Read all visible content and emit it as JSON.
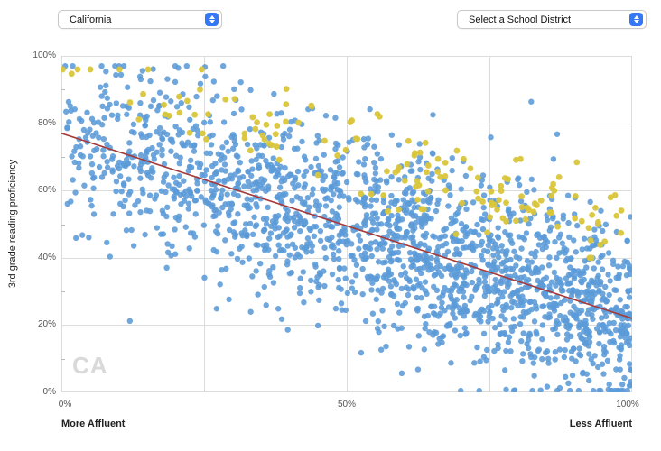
{
  "header": {
    "state_select": {
      "value": "California"
    },
    "district_select": {
      "value": "Select a School District"
    }
  },
  "chart_data": {
    "type": "scatter",
    "title": "",
    "ylabel": "3rd grade reading proficiency",
    "xlabel_left": "More Affluent",
    "xlabel_right": "Less Affluent",
    "watermark": "CA",
    "xlim": [
      0,
      100
    ],
    "ylim": [
      0,
      100
    ],
    "grid": true,
    "x_ticks": [
      {
        "value": 0,
        "label": "0%"
      },
      {
        "value": 50,
        "label": "50%"
      },
      {
        "value": 100,
        "label": "100%"
      }
    ],
    "y_ticks": [
      {
        "value": 0,
        "label": "0%"
      },
      {
        "value": 20,
        "label": "20%"
      },
      {
        "value": 40,
        "label": "40%"
      },
      {
        "value": 60,
        "label": "60%"
      },
      {
        "value": 80,
        "label": "80%"
      },
      {
        "value": 100,
        "label": "100%"
      }
    ],
    "x_gridlines": [
      0,
      25,
      50,
      75,
      100
    ],
    "y_gridlines": [
      0,
      20,
      40,
      60,
      80,
      100
    ],
    "colors": {
      "districts": "#5b9bd8",
      "outperformers": "#d9c63c",
      "trend": "#a63a3a",
      "grid": "#dcdcdc",
      "tick": "#bbbbbb"
    },
    "trend_line": {
      "x": [
        0,
        100
      ],
      "y": [
        77,
        22
      ]
    },
    "series": [
      {
        "name": "districts",
        "color_key": "districts",
        "count": 2000,
        "offset_above_trend": 0,
        "y_noise_sd": 14,
        "x_skew": 0.75,
        "y_min": 0.5,
        "y_max": 97,
        "radius": 3.2,
        "alpha": 0.88,
        "seed": 42
      },
      {
        "name": "outperformers",
        "color_key": "outperformers",
        "count": 150,
        "offset_above_trend": 23,
        "y_noise_sd": 7,
        "x_skew": 0.8,
        "y_min": 40,
        "y_max": 96,
        "radius": 3.4,
        "alpha": 0.95,
        "seed": 7
      }
    ]
  }
}
